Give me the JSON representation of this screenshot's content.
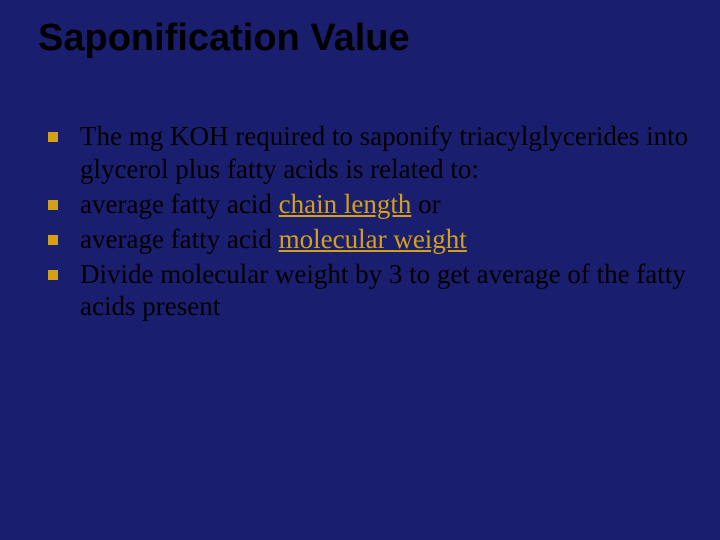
{
  "slide": {
    "title": "Saponification Value",
    "background_color": "#1a1e6e",
    "title_color": "#000000",
    "title_fontsize": 38,
    "title_font_family": "Comic Sans MS",
    "bullets": [
      {
        "pre": "The mg KOH required to saponify triacylglycerides into glycerol plus fatty acids is related to:",
        "highlight": "",
        "post": "",
        "indent": false
      },
      {
        "pre": " average fatty acid ",
        "highlight": "chain length",
        "post": " or",
        "indent": false
      },
      {
        "pre": " average fatty acid ",
        "highlight": "molecular weight",
        "post": "",
        "indent": false
      },
      {
        "pre": "Divide molecular weight by 3 to get average of the fatty acids present",
        "highlight": "",
        "post": "",
        "indent": false
      }
    ],
    "bullet_marker_color": "#d4a017",
    "bullet_fontsize": 27,
    "highlight_color": "#d4a017",
    "text_color": "#000000"
  }
}
